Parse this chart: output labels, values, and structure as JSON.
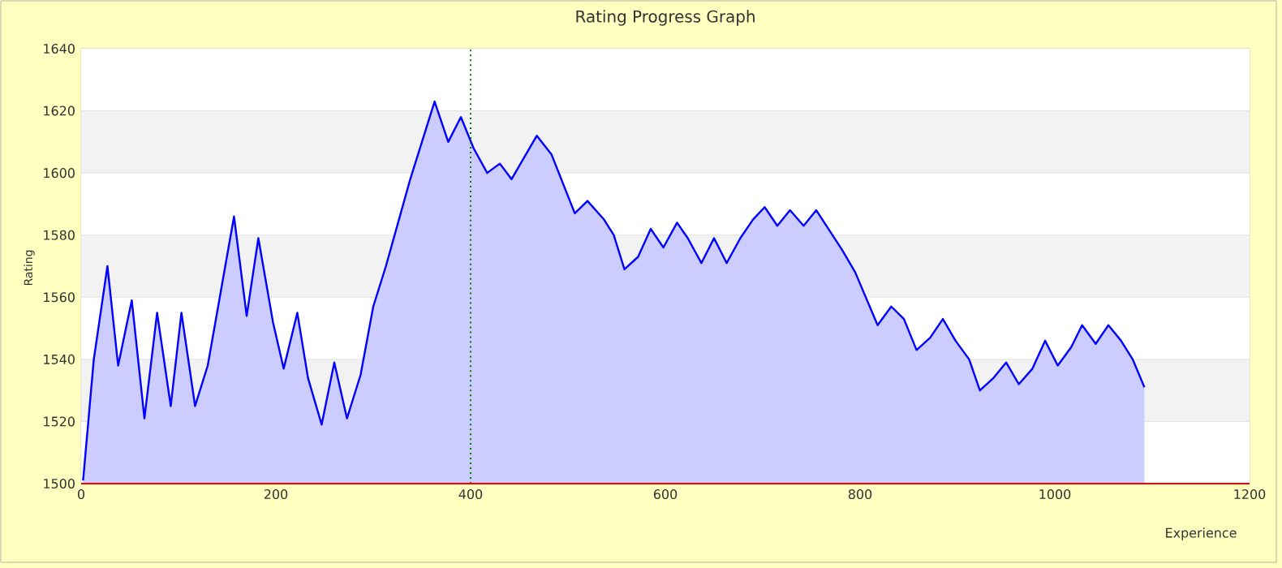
{
  "chart_data": {
    "type": "area",
    "title": "Rating Progress Graph",
    "xlabel": "Experience",
    "ylabel": "Rating",
    "x": [
      2,
      13,
      27,
      38,
      52,
      65,
      78,
      92,
      103,
      117,
      130,
      157,
      170,
      182,
      197,
      208,
      222,
      233,
      247,
      260,
      273,
      287,
      300,
      313,
      338,
      363,
      377,
      390,
      403,
      417,
      430,
      442,
      468,
      483,
      507,
      520,
      537,
      547,
      558,
      572,
      585,
      598,
      612,
      623,
      637,
      650,
      663,
      677,
      690,
      702,
      715,
      728,
      742,
      755,
      782,
      795,
      818,
      832,
      845,
      858,
      872,
      885,
      898,
      912,
      923,
      937,
      950,
      963,
      977,
      990,
      1003,
      1017,
      1028,
      1042,
      1055,
      1068,
      1080,
      1092
    ],
    "series": [
      {
        "color": "#0000ff",
        "values": [
          1501,
          1540,
          1570,
          1538,
          1559,
          1521,
          1555,
          1525,
          1555,
          1525,
          1538,
          1586,
          1554,
          1579,
          1552,
          1537,
          1555,
          1534,
          1519,
          1539,
          1521,
          1535,
          1557,
          1570,
          1598,
          1623,
          1610,
          1618,
          1608,
          1600,
          1603,
          1598,
          1612,
          1606,
          1587,
          1591,
          1585,
          1580,
          1569,
          1573,
          1582,
          1576,
          1584,
          1579,
          1571,
          1579,
          1571,
          1579,
          1585,
          1589,
          1583,
          1588,
          1583,
          1588,
          1575,
          1568,
          1551,
          1557,
          1553,
          1543,
          1547,
          1553,
          1546,
          1540,
          1530,
          1534,
          1539,
          1532,
          1537,
          1546,
          1538,
          1544,
          1551,
          1545,
          1551,
          1546,
          1540,
          1531
        ]
      }
    ],
    "xlim": [
      0,
      1200
    ],
    "ylim": [
      1500,
      1640
    ],
    "xticks": [
      0,
      200,
      400,
      600,
      800,
      1000,
      1200
    ],
    "yticks": [
      1500,
      1520,
      1540,
      1560,
      1580,
      1600,
      1620,
      1640
    ],
    "grid": "y",
    "marker": "none",
    "line_style": "solid",
    "ref_lines": [
      {
        "axis": "x",
        "value": 400,
        "color": "#008000",
        "line_style": "dotted"
      }
    ]
  }
}
